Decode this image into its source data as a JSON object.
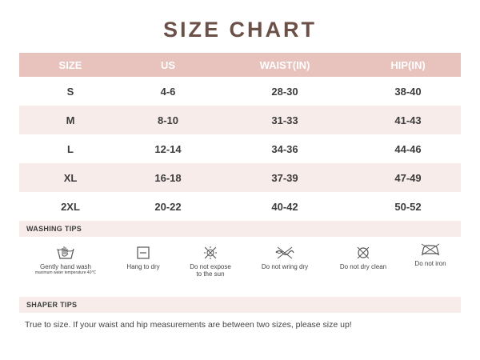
{
  "title": "SIZE CHART",
  "table": {
    "headers": [
      "SIZE",
      "US",
      "WAIST(IN)",
      "HIP(IN)"
    ],
    "rows": [
      [
        "S",
        "4-6",
        "28-30",
        "38-40"
      ],
      [
        "M",
        "8-10",
        "31-33",
        "41-43"
      ],
      [
        "L",
        "12-14",
        "34-36",
        "44-46"
      ],
      [
        "XL",
        "16-18",
        "37-39",
        "47-49"
      ],
      [
        "2XL",
        "20-22",
        "40-42",
        "50-52"
      ]
    ]
  },
  "washing": {
    "heading": "WASHING TIPS",
    "tips": [
      {
        "icon": "hand-wash-icon",
        "label": "Gently hand wash",
        "sub": "maximum water temperature 40℃"
      },
      {
        "icon": "hang-dry-icon",
        "label": "Hang to dry"
      },
      {
        "icon": "no-sun-icon",
        "label": "Do not expose\nto the sun"
      },
      {
        "icon": "no-wring-icon",
        "label": "Do not wring dry"
      },
      {
        "icon": "no-dry-clean-icon",
        "label": "Do not dry clean"
      },
      {
        "icon": "no-iron-icon",
        "label": "Do not iron"
      }
    ]
  },
  "shaper": {
    "heading": "SHAPER TIPS",
    "text": "True to size. If your waist and hip measurements are between two sizes, please size up!"
  },
  "colors": {
    "title": "#6b5048",
    "header_bg": "#e8c2bd",
    "alt_row_bg": "#f8ecea"
  }
}
